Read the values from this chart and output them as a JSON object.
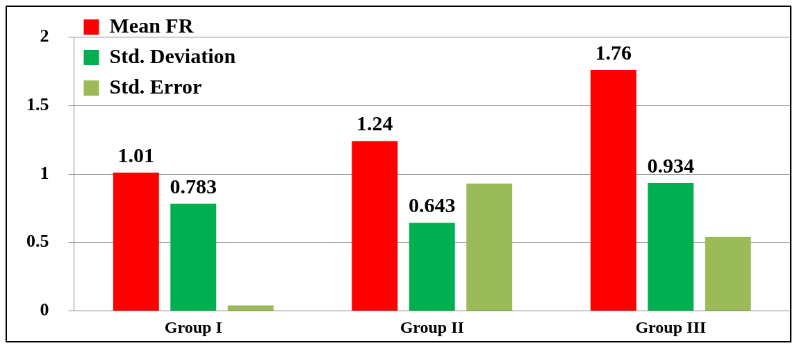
{
  "chart_data": {
    "type": "bar",
    "categories": [
      "Group I",
      "Group II",
      "Group III"
    ],
    "series": [
      {
        "name": "Mean FR",
        "color": "#ff0000",
        "values": [
          1.01,
          1.24,
          1.76
        ],
        "value_labels": [
          "1.01",
          "1.24",
          "1.76"
        ]
      },
      {
        "name": "Std. Deviation",
        "color": "#00b050",
        "values": [
          0.783,
          0.643,
          0.934
        ],
        "value_labels": [
          "0.783",
          "0.643",
          "0.934"
        ]
      },
      {
        "name": "Std. Error",
        "color": "#9bbb59",
        "values": [
          0.04,
          0.93,
          0.54
        ]
      }
    ],
    "ylim": [
      0,
      2
    ],
    "yticks": [
      0,
      0.5,
      1,
      1.5,
      2
    ],
    "grid": "y",
    "legend": "top left"
  }
}
